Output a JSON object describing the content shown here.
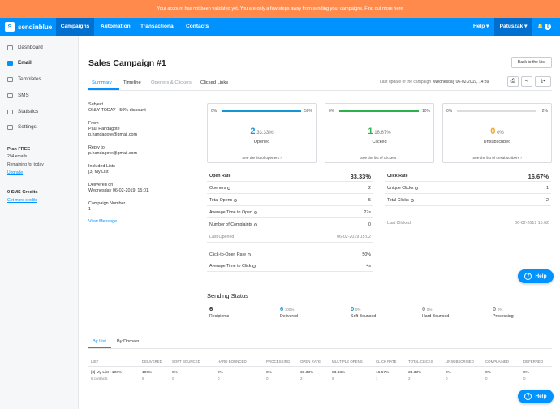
{
  "banner": {
    "text": "Your account has not been validated yet. You are only a few steps away from sending your campaigns.",
    "link": "Find out more here"
  },
  "nav": {
    "brand": "sendinblue",
    "items": [
      "Campaigns",
      "Automation",
      "Transactional",
      "Contacts"
    ],
    "help": "Help",
    "user": "Patuszak",
    "notifications": "0"
  },
  "sidebar": {
    "items": [
      {
        "label": "Dashboard",
        "icon": "dashboard-icon"
      },
      {
        "label": "Email",
        "icon": "email-icon"
      },
      {
        "label": "Templates",
        "icon": "templates-icon"
      },
      {
        "label": "SMS",
        "icon": "sms-icon"
      },
      {
        "label": "Statistics",
        "icon": "statistics-icon"
      },
      {
        "label": "Settings",
        "icon": "settings-icon"
      }
    ],
    "plan_title": "Plan FREE",
    "plan_emails": "294 emails",
    "plan_remaining": "Remaining for today",
    "upgrade": "Upgrade",
    "sms_title": "0 SMS Credits",
    "sms_link": "Get more credits"
  },
  "campaign": {
    "title": "Sales Campaign #1",
    "back_button": "Back to the List",
    "tabs": [
      "Summary",
      "Timeline",
      "Openers & Clickers",
      "Clicked Links"
    ],
    "last_update_label": "Last update of the campaign",
    "last_update_value": "Wednesday 06-02-2019, 14:39"
  },
  "info": {
    "subject_label": "Subject",
    "subject": "ONLY TODAY - 50% discount",
    "from_label": "From",
    "from_name": "Paul Handagote",
    "from_email": "p.handagote@gmail.com",
    "reply_label": "Reply to",
    "reply": "p.handagote@gmail.com",
    "lists_label": "Included Lists",
    "lists": "[3] My List",
    "delivered_label": "Delivered on",
    "delivered": "Wednesday 06-02-2019, 15:01",
    "number_label": "Campaign Number",
    "number": "1",
    "view_message": "View Message"
  },
  "cards": [
    {
      "min": "0%",
      "max": "50%",
      "fill": 1.0,
      "color": "#1396d4",
      "count": "2",
      "pct": "33.33%",
      "caption": "Opened",
      "link": "See the list of openers"
    },
    {
      "min": "0%",
      "max": "10%",
      "fill": 1.0,
      "color": "#2bb24c",
      "count": "1",
      "pct": "16.67%",
      "caption": "Clicked",
      "link": "See the list of clickers"
    },
    {
      "min": "0%",
      "max": "2%",
      "fill": 0.0,
      "color": "#f5a623",
      "count": "0",
      "pct": "0%",
      "caption": "Unsubscribed",
      "link": "See the list of unsubscribers"
    }
  ],
  "open_stats": {
    "open_rate_label": "Open Rate",
    "open_rate": "33.33%",
    "rows": [
      {
        "label": "Openers",
        "value": "2",
        "info": true
      },
      {
        "label": "Total Opens",
        "value": "5",
        "info": true
      },
      {
        "label": "Average Time to Open",
        "value": "27s",
        "info": true
      },
      {
        "label": "Number of Complaints",
        "value": "0",
        "info": true
      }
    ],
    "last_opened_label": "Last Opened",
    "last_opened": "06-02-2019 15:02",
    "cto_label": "Click-to-Open Rate",
    "cto": "50%",
    "atc_label": "Average Time to Click",
    "atc": "4s"
  },
  "click_stats": {
    "click_rate_label": "Click Rate",
    "click_rate": "16.67%",
    "rows": [
      {
        "label": "Unique Clicks",
        "value": "1"
      },
      {
        "label": "Total Clicks",
        "value": "2"
      }
    ],
    "last_clicked_label": "Last Clicked",
    "last_clicked": "06-02-2019 15:02"
  },
  "sending_status": {
    "title": "Sending Status",
    "items": [
      {
        "value": "6",
        "pct": "",
        "label": "Recipients",
        "color": "#222"
      },
      {
        "value": "6",
        "pct": "100%",
        "label": "Delivered",
        "color": "#1396d4"
      },
      {
        "value": "0",
        "pct": "0%",
        "label": "Soft Bounced",
        "color": "#1396d4"
      },
      {
        "value": "0",
        "pct": "0%",
        "label": "Hard Bounced",
        "color": "#888"
      },
      {
        "value": "0",
        "pct": "0%",
        "label": "Processing",
        "color": "#888"
      }
    ]
  },
  "bottom_tabs": [
    "By List",
    "By Domain"
  ],
  "table": {
    "headers": [
      "LIST",
      "DELIVERED",
      "SOFT BOUNCED",
      "HARD BOUNCED",
      "PROCESSING",
      "OPEN RATE",
      "MULTIPLE OPENS",
      "CLICK RATE",
      "TOTAL CLICKS",
      "UNSUBSCRIBED",
      "COMPLAINED",
      "DEFERRED"
    ],
    "row": [
      "[3] My List : 100%",
      "100%",
      "0%",
      "0%",
      "0%",
      "33.33%",
      "83.33%",
      "16.67%",
      "33.33%",
      "0%",
      "0%",
      "0%"
    ],
    "sub": [
      "6 contacts",
      "6",
      "0",
      "0",
      "0",
      "2",
      "5",
      "1",
      "2",
      "0",
      "0",
      "0"
    ]
  },
  "help_label": "Help"
}
